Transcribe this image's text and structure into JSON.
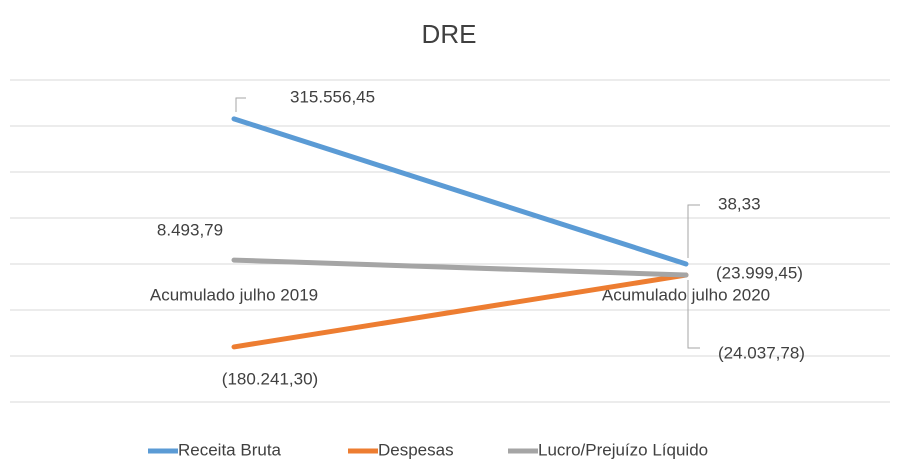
{
  "chart_data": {
    "type": "line",
    "title": "DRE",
    "categories": [
      "Acumulado julho 2019",
      "Acumulado julho 2020"
    ],
    "series": [
      {
        "name": "Receita Bruta",
        "color": "#5b9bd5",
        "values": [
          315556.45,
          38.33
        ],
        "value_labels": [
          "315.556,45",
          "38,33"
        ]
      },
      {
        "name": "Despesas",
        "color": "#ed7d31",
        "values": [
          -180241.3,
          -24037.78
        ],
        "value_labels": [
          "(180.241,30)",
          "(24.037,78)"
        ]
      },
      {
        "name": "Lucro/Prejuízo Líquido",
        "color": "#a5a5a5",
        "values": [
          8493.79,
          -23999.45
        ],
        "value_labels": [
          "8.493,79",
          "(23.999,45)"
        ]
      }
    ],
    "ylim": [
      -300000,
      400000
    ],
    "yticks": [
      -300000,
      -200000,
      -100000,
      0,
      100000,
      200000,
      300000,
      400000
    ],
    "grid": true,
    "legend": "bottom"
  }
}
